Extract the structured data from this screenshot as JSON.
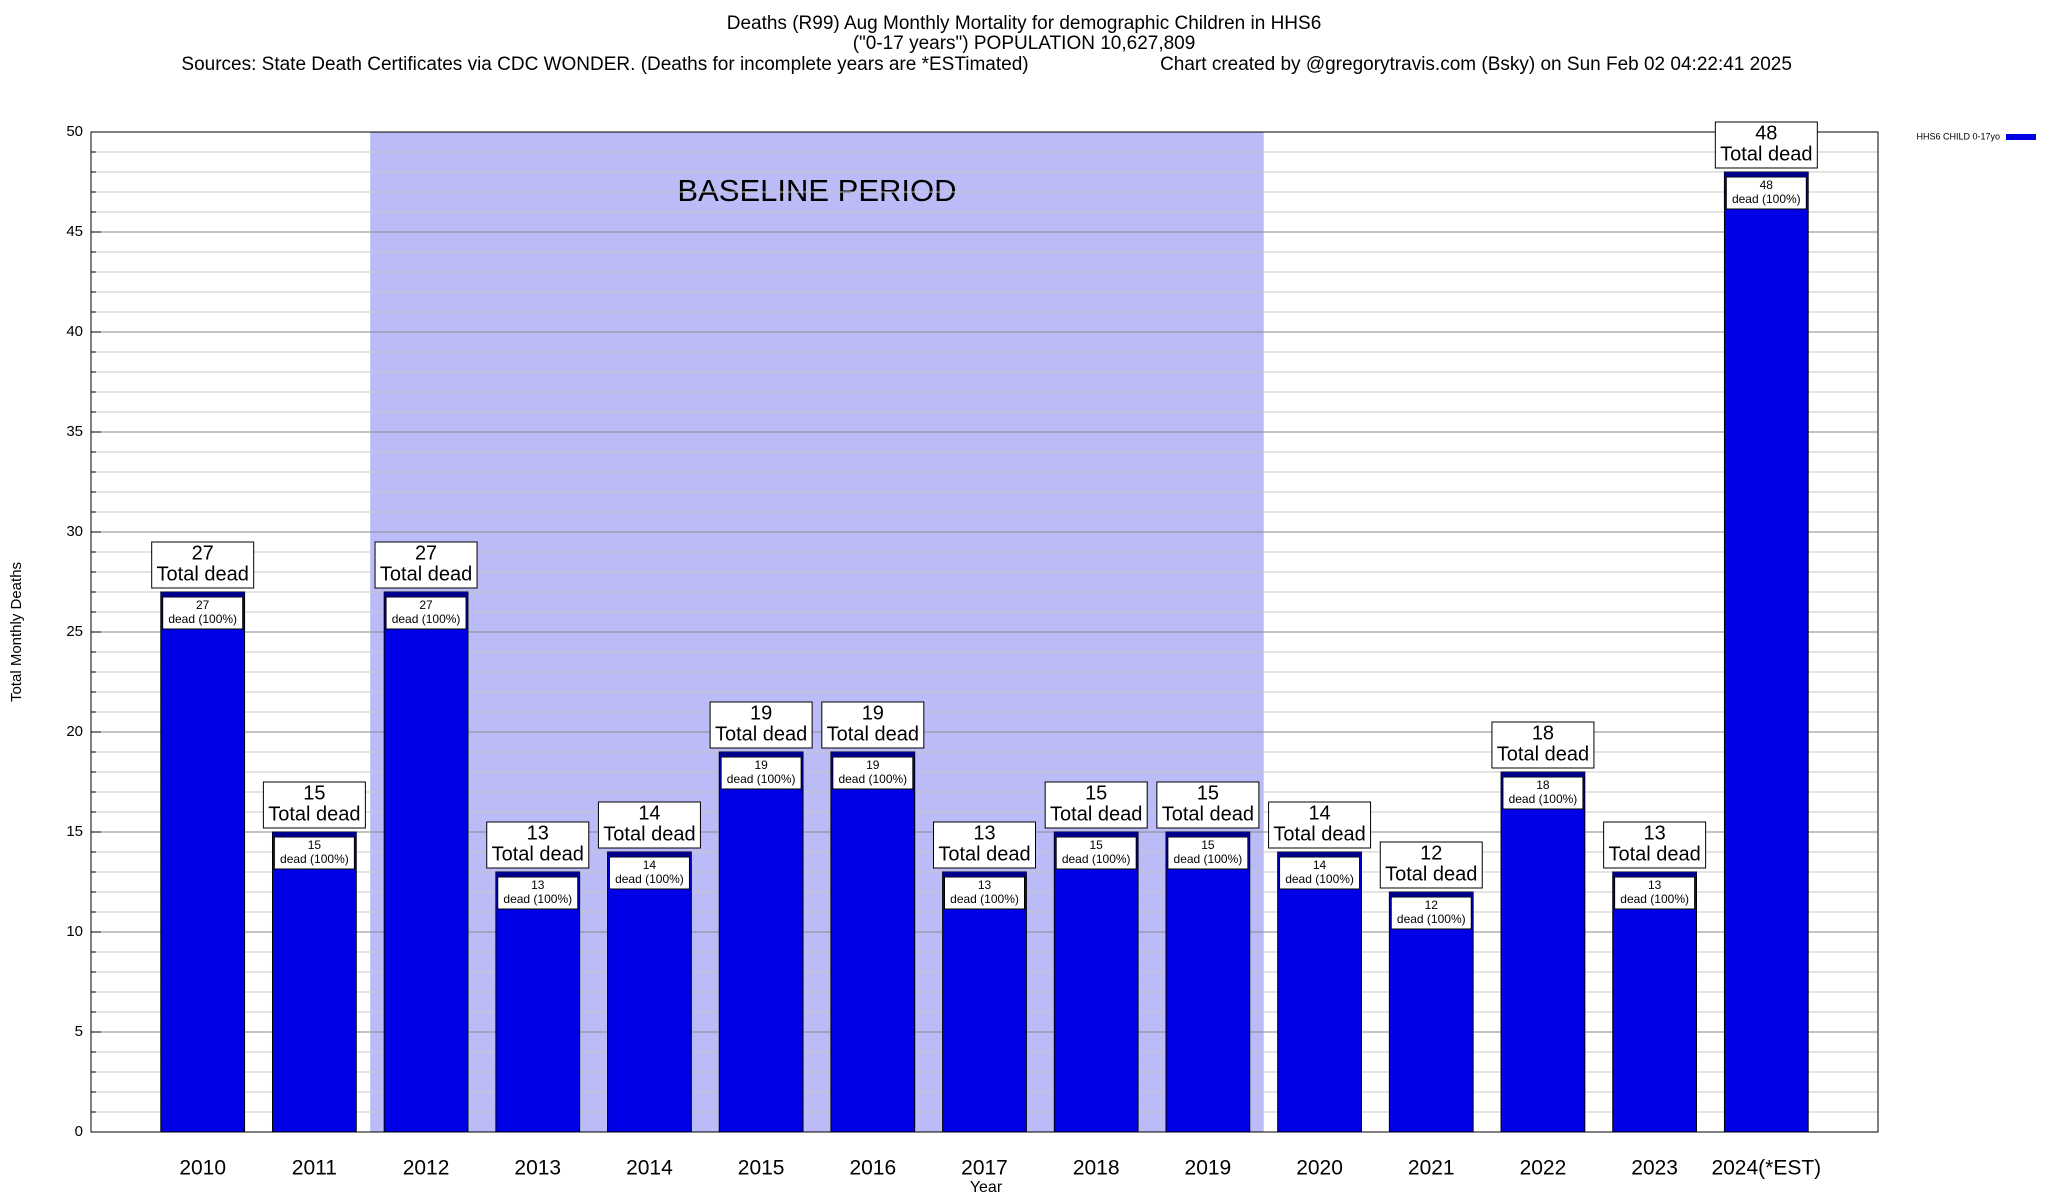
{
  "chart_data": {
    "type": "bar",
    "title": "Deaths (R99) Aug Monthly Mortality for demographic Children in HHS6",
    "subtitle": "(\"0-17 years\") POPULATION 10,627,809",
    "source": "Sources: State Death Certificates via CDC WONDER. (Deaths for incomplete years are *ESTimated)",
    "credit": "Chart created by @gregorytravis.com (Bsky) on Sun Feb 02 04:22:41 2025",
    "x_label": "Year",
    "y_label": "Total Monthly Deaths",
    "categories": [
      "2010",
      "2011",
      "2012",
      "2013",
      "2014",
      "2015",
      "2016",
      "2017",
      "2018",
      "2019",
      "2020",
      "2021",
      "2022",
      "2023",
      "2024(*EST)"
    ],
    "series": [
      {
        "name": "HHS6 CHILD 0-17yo",
        "color": "#0000e6",
        "values": [
          27,
          15,
          27,
          13,
          14,
          19,
          19,
          13,
          15,
          15,
          14,
          12,
          18,
          13,
          48
        ]
      }
    ],
    "total_text": "Total dead",
    "inner_text": "dead (100%)",
    "baseline": {
      "label": "BASELINE PERIOD",
      "start": "2012",
      "end": "2019",
      "color": "#bbbbf8"
    },
    "ylim": [
      0,
      50
    ],
    "yticks": [
      0,
      5,
      10,
      15,
      20,
      25,
      30,
      35,
      40,
      45,
      50
    ],
    "minor_yticks": [
      1,
      2,
      3,
      4,
      6,
      7,
      8,
      9,
      11,
      12,
      13,
      14,
      16,
      17,
      18,
      19,
      21,
      22,
      23,
      24,
      26,
      27,
      28,
      29,
      31,
      32,
      33,
      34,
      36,
      37,
      38,
      39,
      41,
      42,
      43,
      44,
      46,
      47,
      48,
      49
    ],
    "grid": true,
    "legend": "top-right"
  }
}
